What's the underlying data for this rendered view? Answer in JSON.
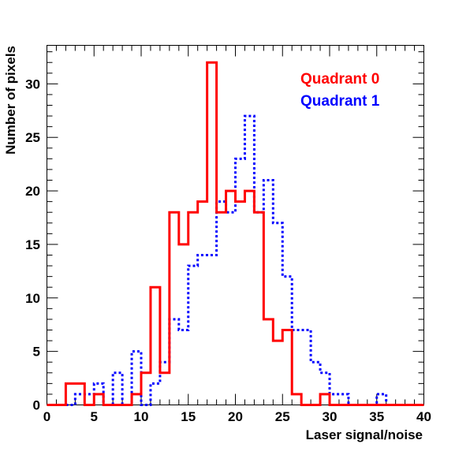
{
  "chart_data": {
    "type": "histogram",
    "title": "",
    "xlabel": "Laser signal/noise",
    "ylabel": "Number of pixels",
    "xlim": [
      0,
      40
    ],
    "ylim": [
      0,
      33.6
    ],
    "bin_width": 1,
    "x_ticks": [
      0,
      5,
      10,
      15,
      20,
      25,
      30,
      35,
      40
    ],
    "y_ticks": [
      0,
      5,
      10,
      15,
      20,
      25,
      30
    ],
    "legend_placement": "top-right",
    "series": [
      {
        "name": "Quadrant 0",
        "color": "#ff0000",
        "line_style": "solid",
        "bin_edges_start": 0,
        "values": [
          0,
          0,
          2,
          2,
          0,
          1,
          0,
          0,
          0,
          1,
          3,
          11,
          3,
          18,
          15,
          18,
          19,
          32,
          18,
          20,
          19,
          20,
          18,
          8,
          6,
          7,
          1,
          0,
          0,
          1,
          0,
          0,
          0,
          0,
          0,
          0,
          0,
          0,
          0,
          0
        ]
      },
      {
        "name": "Quadrant 1",
        "color": "#0000ff",
        "line_style": "dotted",
        "bin_edges_start": 0,
        "values": [
          0,
          0,
          0,
          1,
          1,
          2,
          0,
          3,
          0,
          5,
          0,
          2,
          4,
          8,
          7,
          13,
          14,
          14,
          19,
          18,
          23,
          27,
          18,
          21,
          17,
          12,
          7,
          7,
          4,
          3,
          1,
          1,
          0,
          0,
          0,
          1,
          0,
          0,
          0,
          0
        ]
      }
    ]
  }
}
